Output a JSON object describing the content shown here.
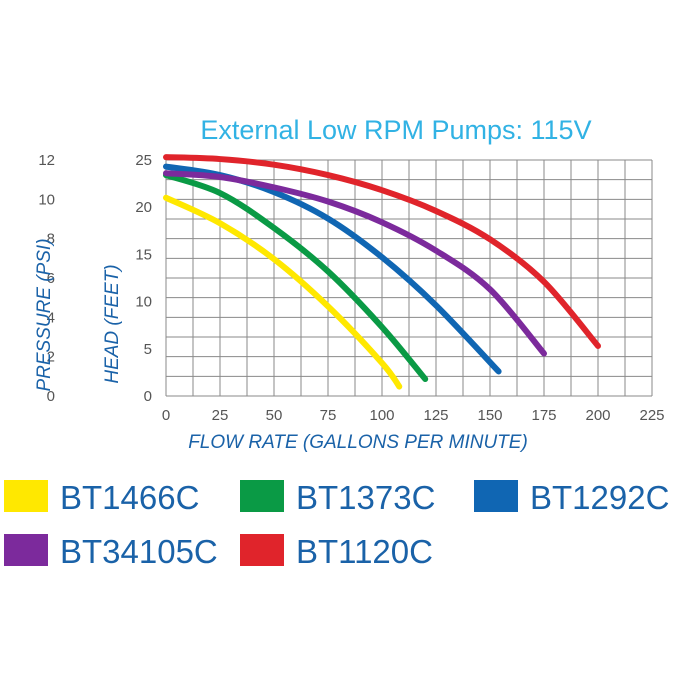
{
  "chart_data": {
    "type": "line",
    "title": "External Low RPM Pumps: 115V",
    "xlabel": "FLOW RATE (GALLONS PER MINUTE)",
    "ylabel": "HEAD (FEET)",
    "y2label": "PRESSURE (PSI)",
    "xlim": [
      0,
      225
    ],
    "ylim": [
      0,
      25
    ],
    "y2lim": [
      0,
      12
    ],
    "x_ticks": [
      "0",
      "25",
      "50",
      "75",
      "100",
      "125",
      "150",
      "175",
      "200",
      "225"
    ],
    "y_ticks": [
      "0",
      "5",
      "10",
      "15",
      "20",
      "25"
    ],
    "y2_ticks": [
      "0",
      "2",
      "4",
      "6",
      "8",
      "10",
      "12"
    ],
    "grid": true,
    "legend_position": "bottom",
    "series": [
      {
        "name": "BT1466C",
        "color": "#ffe800",
        "x": [
          0,
          25,
          50,
          75,
          100,
          108
        ],
        "y": [
          21,
          18.3,
          14.5,
          9.5,
          3.5,
          1
        ]
      },
      {
        "name": "BT1373C",
        "color": "#0a9a45",
        "x": [
          0,
          25,
          50,
          75,
          100,
          120
        ],
        "y": [
          23.4,
          21.5,
          17.8,
          13.2,
          7.3,
          1.8
        ]
      },
      {
        "name": "BT1292C",
        "color": "#1066b3",
        "x": [
          0,
          25,
          50,
          75,
          100,
          125,
          154
        ],
        "y": [
          24.3,
          23.4,
          21.6,
          18.8,
          14.7,
          9.6,
          2.6
        ]
      },
      {
        "name": "BT34105C",
        "color": "#7c2a9c",
        "x": [
          0,
          25,
          50,
          75,
          100,
          125,
          150,
          175
        ],
        "y": [
          23.6,
          23.2,
          22.1,
          20.6,
          18.4,
          15.4,
          11.3,
          4.5
        ]
      },
      {
        "name": "BT1120C",
        "color": "#e0242b",
        "x": [
          0,
          25,
          50,
          75,
          100,
          125,
          150,
          175,
          200
        ],
        "y": [
          25.3,
          25.1,
          24.5,
          23.4,
          21.8,
          19.6,
          16.6,
          12.1,
          5.3
        ]
      }
    ]
  },
  "colors": {
    "title": "#31b2e4",
    "axis_labels": "#1a62a8",
    "legend_text": "#1a62a8",
    "grid": "#8a8a8a"
  }
}
